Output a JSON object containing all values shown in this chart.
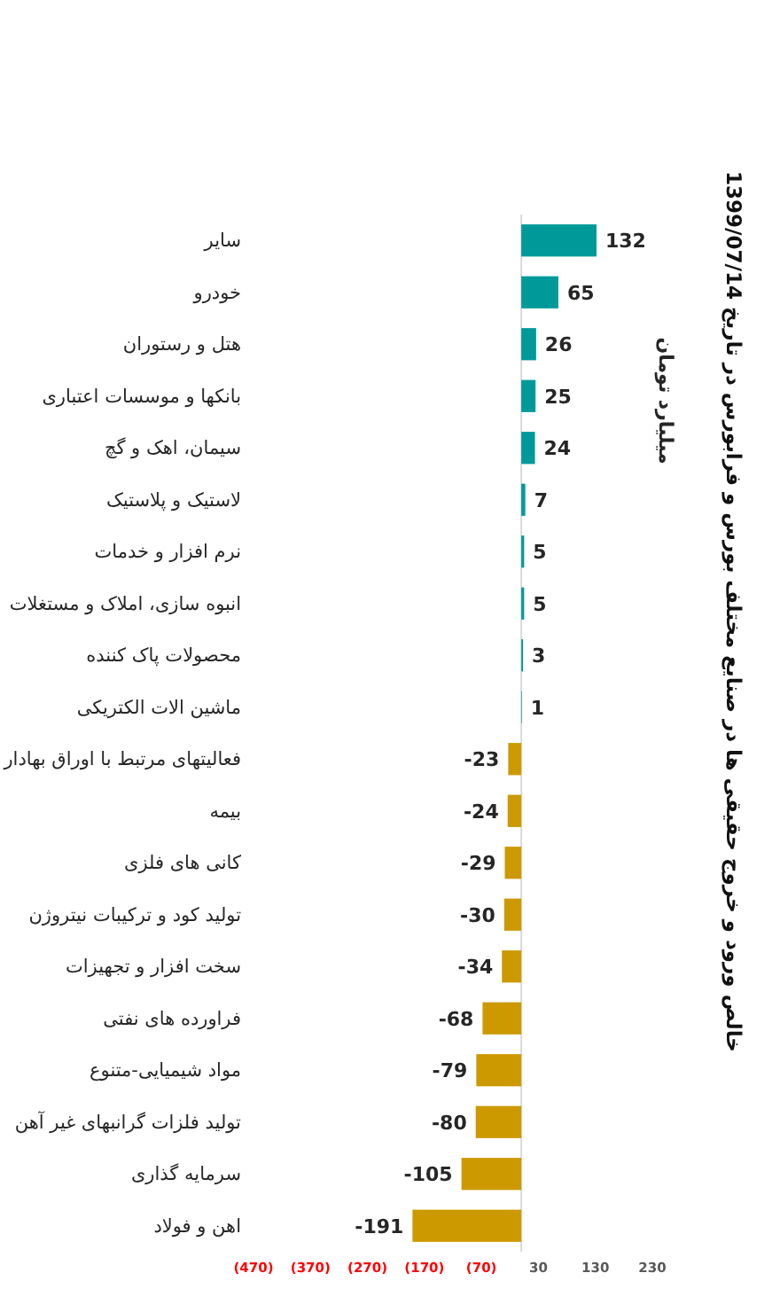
{
  "chart_data": {
    "type": "bar",
    "orientation": "horizontal",
    "title": "خالص ورود و خروج حقیقی ها در صنایع مختلف بورس و فرابورس در تاریخ 1399/07/14",
    "ylabel": "میلیارد تومان",
    "categories": [
      "سایر",
      "خودرو",
      "هتل و رستوران",
      "بانکها و موسسات اعتباری",
      "سیمان، اهک و گچ",
      "لاستیک و پلاستیک",
      "نرم افزار و خدمات",
      "انبوه سازی، املاک و مستغلات",
      "محصولات پاک کننده",
      "ماشین الات الکتریکی",
      "فعالیتهای مرتبط با اوراق بهادار",
      "بیمه",
      "کانی های فلزی",
      "تولید کود و ترکیبات نیتروژن",
      "سخت افزار و تجهیزات",
      "فراورده های نفتی",
      "مواد شیمیایی-متنوع",
      "تولید فلزات گرانبهای غیر آهن",
      "سرمایه گذاری",
      "اهن و فولاد"
    ],
    "values": [
      132,
      65,
      26,
      25,
      24,
      7,
      5,
      5,
      3,
      1,
      -23,
      -24,
      -29,
      -30,
      -34,
      -68,
      -79,
      -80,
      -105,
      -191
    ],
    "colors": [
      "#009999",
      "#009999",
      "#009999",
      "#009999",
      "#009999",
      "#009999",
      "#009999",
      "#009999",
      "#009999",
      "#009999",
      "#cc9900",
      "#cc9900",
      "#cc9900",
      "#cc9900",
      "#cc9900",
      "#cc9900",
      "#cc9900",
      "#cc9900",
      "#cc9900",
      "#cc9900"
    ],
    "xlim": [
      -470,
      230
    ],
    "xticks": [
      {
        "value": -470,
        "label": "(470)"
      },
      {
        "value": -370,
        "label": "(370)"
      },
      {
        "value": -270,
        "label": "(270)"
      },
      {
        "value": -170,
        "label": "(170)"
      },
      {
        "value": -70,
        "label": "(70)"
      },
      30,
      130,
      230
    ],
    "data_labels": true
  }
}
